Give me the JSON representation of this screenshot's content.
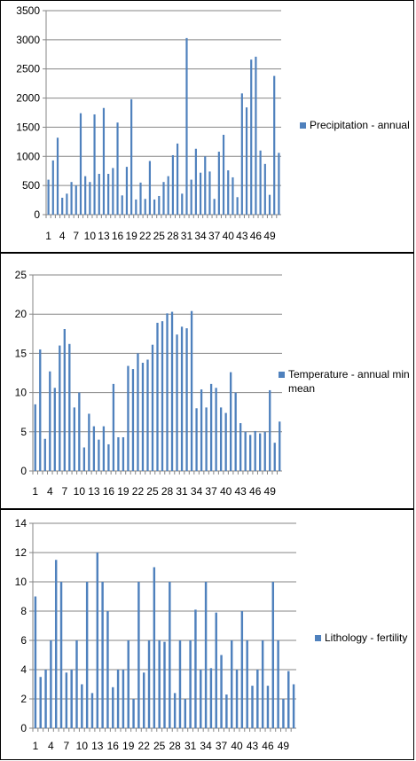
{
  "chart_data": [
    {
      "type": "bar",
      "x_tick_labels": [
        "1",
        "4",
        "7",
        "10",
        "13",
        "16",
        "19",
        "22",
        "25",
        "28",
        "31",
        "34",
        "37",
        "40",
        "43",
        "46",
        "49"
      ],
      "series": [
        {
          "name": "Precipitation - annual",
          "color": "#4f81bd",
          "values": [
            600,
            930,
            1320,
            290,
            360,
            560,
            500,
            1740,
            660,
            560,
            1720,
            700,
            1830,
            700,
            800,
            1580,
            330,
            820,
            1980,
            260,
            550,
            270,
            920,
            260,
            320,
            560,
            660,
            1020,
            1220,
            360,
            3030,
            600,
            1130,
            720,
            1000,
            740,
            270,
            1080,
            1370,
            760,
            640,
            300,
            2080,
            1840,
            2660,
            2710,
            1100,
            870,
            340,
            2380,
            1060
          ]
        }
      ],
      "y_ticks": [
        0,
        500,
        1000,
        1500,
        2000,
        2500,
        3000,
        3500
      ],
      "ylim": [
        0,
        3500
      ],
      "legend": "right"
    },
    {
      "type": "bar",
      "x_tick_labels": [
        "1",
        "4",
        "7",
        "10",
        "13",
        "16",
        "19",
        "22",
        "25",
        "28",
        "31",
        "34",
        "37",
        "40",
        "43",
        "46",
        "49"
      ],
      "series": [
        {
          "name": "Temperature - annual min mean",
          "color": "#4f81bd",
          "values": [
            8.5,
            15.5,
            4.1,
            12.7,
            10.6,
            16.0,
            18.1,
            16.2,
            8.1,
            10.0,
            3.0,
            7.3,
            5.7,
            4.0,
            5.7,
            3.4,
            11.1,
            4.3,
            4.3,
            13.4,
            13.0,
            15.0,
            13.8,
            14.2,
            16.1,
            18.9,
            19.1,
            20.1,
            20.3,
            17.4,
            18.4,
            18.2,
            20.4,
            8.0,
            10.4,
            8.1,
            11.1,
            10.6,
            8.1,
            7.4,
            12.6,
            10.0,
            6.1,
            5.0,
            4.6,
            5.1,
            4.8,
            5.0,
            10.3,
            3.6,
            6.3
          ]
        }
      ],
      "y_ticks": [
        0,
        5,
        10,
        15,
        20,
        25
      ],
      "ylim": [
        0,
        25
      ],
      "legend": "right"
    },
    {
      "type": "bar",
      "x_tick_labels": [
        "1",
        "4",
        "7",
        "10",
        "13",
        "16",
        "19",
        "22",
        "25",
        "28",
        "31",
        "34",
        "37",
        "40",
        "43",
        "46",
        "49"
      ],
      "series": [
        {
          "name": "Lithology - fertility",
          "color": "#4f81bd",
          "values": [
            9,
            3.5,
            4,
            6,
            11.5,
            10,
            3.8,
            4,
            6,
            3,
            10,
            2.4,
            12,
            10,
            8,
            2.8,
            4,
            4,
            6,
            2,
            10,
            3.8,
            6,
            11,
            6,
            5.9,
            10,
            2.4,
            6,
            2,
            6,
            8.1,
            4,
            10,
            4.1,
            7.9,
            5,
            2.3,
            6,
            4,
            8,
            6,
            2.9,
            4,
            6,
            2.9,
            10,
            6,
            2,
            3.9,
            3
          ]
        }
      ],
      "y_ticks": [
        0,
        2,
        4,
        6,
        8,
        10,
        12,
        14
      ],
      "ylim": [
        0,
        14
      ],
      "legend": "right"
    }
  ]
}
